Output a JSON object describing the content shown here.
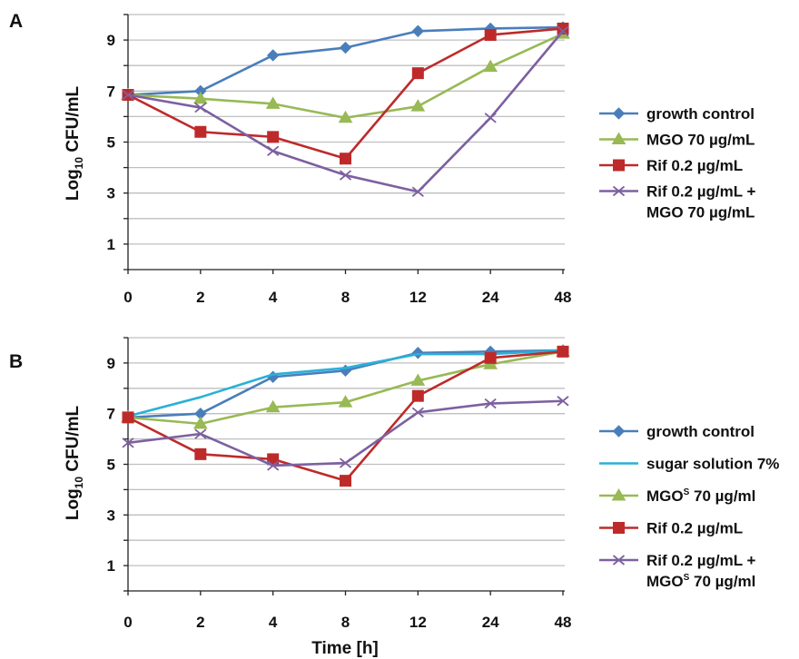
{
  "chart_data": [
    {
      "panel": "A",
      "type": "line",
      "categories": [
        "0",
        "2",
        "4",
        "8",
        "12",
        "24",
        "48"
      ],
      "ylabel_main": "Log",
      "ylabel_sub": "10",
      "ylabel_tail": " CFU/mL",
      "xlabel": "",
      "ylim": [
        0,
        10
      ],
      "yticks": [
        1,
        3,
        5,
        7,
        9
      ],
      "grid": true,
      "legend": "right",
      "series": [
        {
          "name": "growth control",
          "color": "#4a7ebb",
          "marker": "diamond",
          "values": [
            6.85,
            7.0,
            8.4,
            8.7,
            9.35,
            9.45,
            9.5
          ]
        },
        {
          "name": "MGO 70 µg/mL",
          "color": "#98b954",
          "marker": "triangle",
          "values": [
            6.85,
            6.7,
            6.5,
            5.95,
            6.4,
            7.95,
            9.25
          ]
        },
        {
          "name": "Rif 0.2 µg/mL",
          "color": "#be2a2a",
          "marker": "square",
          "values": [
            6.85,
            5.4,
            5.2,
            4.35,
            7.7,
            9.2,
            9.45
          ]
        },
        {
          "name": "Rif 0.2 µg/mL +",
          "name_line2": "MGO 70 µg/mL",
          "color": "#7d60a0",
          "marker": "x",
          "values": [
            6.85,
            6.35,
            4.65,
            3.7,
            3.05,
            5.95,
            9.35
          ]
        }
      ]
    },
    {
      "panel": "B",
      "type": "line",
      "categories": [
        "0",
        "2",
        "4",
        "8",
        "12",
        "24",
        "48"
      ],
      "ylabel_main": "Log",
      "ylabel_sub": "10",
      "ylabel_tail": " CFU/mL",
      "xlabel": "Time [h]",
      "ylim": [
        0,
        10
      ],
      "yticks": [
        1,
        3,
        5,
        7,
        9
      ],
      "grid": true,
      "legend": "right",
      "series": [
        {
          "name": "growth control",
          "color": "#4a7ebb",
          "marker": "diamond",
          "values": [
            6.85,
            7.0,
            8.45,
            8.7,
            9.4,
            9.45,
            9.5
          ]
        },
        {
          "name": "sugar solution 7%",
          "color": "#2ab0d8",
          "marker": "none",
          "values": [
            6.9,
            7.65,
            8.55,
            8.8,
            9.35,
            9.35,
            9.5
          ]
        },
        {
          "name": "MGO",
          "name_sup": "S",
          "name_tail": " 70 µg/ml",
          "color": "#98b954",
          "marker": "triangle",
          "values": [
            6.85,
            6.6,
            7.25,
            7.45,
            8.3,
            8.95,
            9.45
          ]
        },
        {
          "name": "Rif 0.2 µg/mL",
          "color": "#be2a2a",
          "marker": "square",
          "values": [
            6.85,
            5.4,
            5.2,
            4.35,
            7.7,
            9.2,
            9.45
          ]
        },
        {
          "name": "Rif 0.2 µg/mL +",
          "name_line2": "MGO",
          "name_line2_sup": "S",
          "name_line2_tail": " 70 µg/ml",
          "color": "#7d60a0",
          "marker": "x",
          "values": [
            5.85,
            6.2,
            4.95,
            5.05,
            7.05,
            7.4,
            7.5
          ]
        }
      ]
    }
  ]
}
